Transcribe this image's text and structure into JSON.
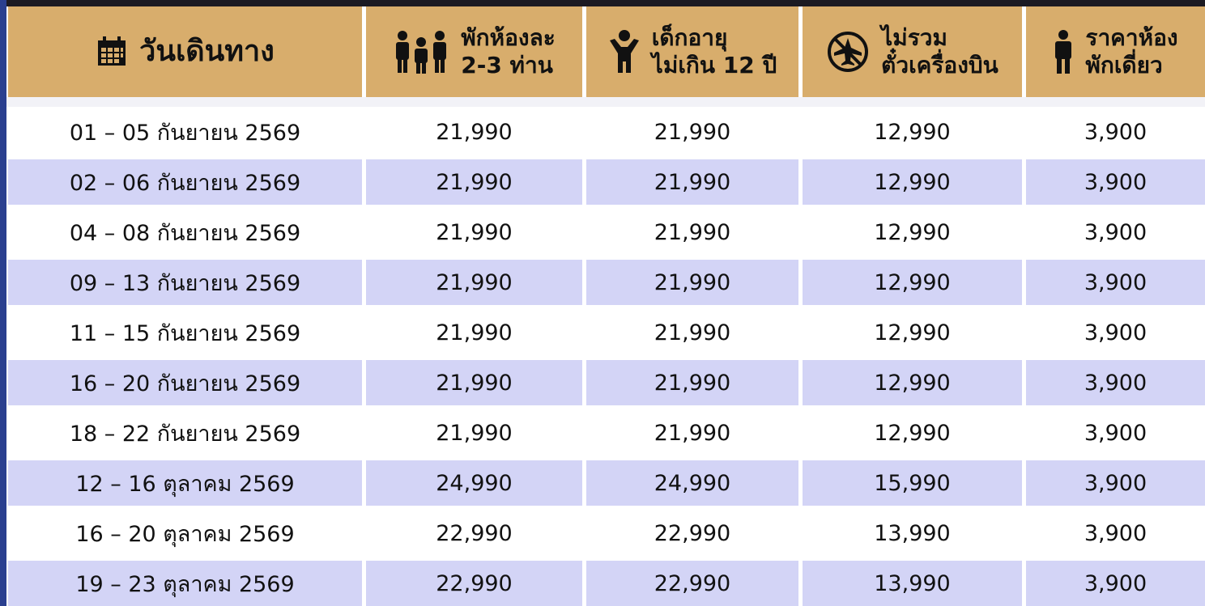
{
  "table": {
    "headers": [
      [
        "วันเดินทาง"
      ],
      [
        "พักห้องละ",
        "2-3 ท่าน"
      ],
      [
        "เด็กอายุ",
        "ไม่เกิน 12 ปี"
      ],
      [
        "ไม่รวม",
        "ตั๋วเครื่องบิน"
      ],
      [
        "ราคาห้อง",
        "พักเดี่ยว"
      ]
    ],
    "rows": [
      [
        "01 – 05 กันยายน 2569",
        "21,990",
        "21,990",
        "12,990",
        "3,900"
      ],
      [
        "02 – 06 กันยายน 2569",
        "21,990",
        "21,990",
        "12,990",
        "3,900"
      ],
      [
        "04 – 08 กันยายน 2569",
        "21,990",
        "21,990",
        "12,990",
        "3,900"
      ],
      [
        "09 – 13 กันยายน 2569",
        "21,990",
        "21,990",
        "12,990",
        "3,900"
      ],
      [
        "11 – 15 กันยายน 2569",
        "21,990",
        "21,990",
        "12,990",
        "3,900"
      ],
      [
        "16 – 20 กันยายน 2569",
        "21,990",
        "21,990",
        "12,990",
        "3,900"
      ],
      [
        "18 – 22 กันยายน 2569",
        "21,990",
        "21,990",
        "12,990",
        "3,900"
      ],
      [
        "12 – 16 ตุลาคม 2569",
        "24,990",
        "24,990",
        "15,990",
        "3,900"
      ],
      [
        "16 – 20 ตุลาคม 2569",
        "22,990",
        "22,990",
        "13,990",
        "3,900"
      ],
      [
        "19 – 23 ตุลาคม 2569",
        "22,990",
        "22,990",
        "13,990",
        "3,900"
      ]
    ]
  }
}
